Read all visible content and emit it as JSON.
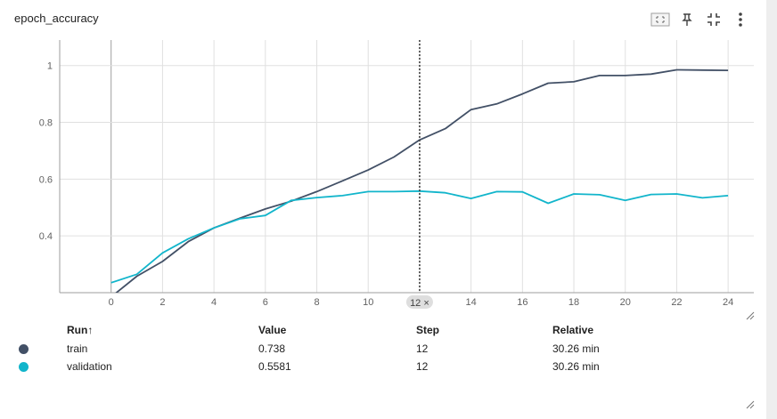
{
  "card": {
    "title": "epoch_accuracy",
    "toolbar": [
      {
        "icon": "fit-to-data-icon"
      },
      {
        "icon": "pin-icon"
      },
      {
        "icon": "collapse-icon"
      },
      {
        "icon": "more-vert-icon"
      }
    ]
  },
  "chart_data": {
    "type": "line",
    "title": "epoch_accuracy",
    "xlabel": "",
    "ylabel": "",
    "xlim": [
      -2,
      25
    ],
    "ylim": [
      0.2,
      1.09
    ],
    "xticks": [
      0,
      2,
      4,
      6,
      8,
      10,
      12,
      14,
      16,
      18,
      20,
      22,
      24
    ],
    "yticks": [
      0.4,
      0.6,
      0.8,
      1
    ],
    "grid": true,
    "hover_step": 12,
    "hover_label": "12 ×",
    "series": [
      {
        "name": "train",
        "color": "#425066",
        "x": [
          0,
          1,
          2,
          3,
          4,
          5,
          6,
          7,
          8,
          9,
          10,
          11,
          12,
          13,
          14,
          15,
          16,
          17,
          18,
          19,
          20,
          21,
          22,
          23,
          24
        ],
        "y": [
          0.185,
          0.258,
          0.31,
          0.38,
          0.428,
          0.462,
          0.495,
          0.522,
          0.556,
          0.594,
          0.632,
          0.678,
          0.738,
          0.778,
          0.845,
          0.865,
          0.9,
          0.938,
          0.943,
          0.965,
          0.965,
          0.97,
          0.985,
          0.984,
          0.983
        ]
      },
      {
        "name": "validation",
        "color": "#12b5cb",
        "x": [
          0,
          1,
          2,
          3,
          4,
          5,
          6,
          7,
          8,
          9,
          10,
          11,
          12,
          13,
          14,
          15,
          16,
          17,
          18,
          19,
          20,
          21,
          22,
          23,
          24
        ],
        "y": [
          0.235,
          0.265,
          0.34,
          0.39,
          0.428,
          0.46,
          0.472,
          0.525,
          0.535,
          0.542,
          0.556,
          0.556,
          0.558,
          0.552,
          0.532,
          0.556,
          0.555,
          0.515,
          0.548,
          0.545,
          0.525,
          0.546,
          0.548,
          0.534,
          0.542
        ]
      }
    ]
  },
  "tooltip": {
    "headers": {
      "run": "Run",
      "sort_arrow": "↑",
      "value": "Value",
      "step": "Step",
      "relative": "Relative"
    },
    "rows": [
      {
        "run": "train",
        "color": "#425066",
        "value": "0.738",
        "step": "12",
        "relative": "30.26 min"
      },
      {
        "run": "validation",
        "color": "#12b5cb",
        "value": "0.5581",
        "step": "12",
        "relative": "30.26 min"
      }
    ]
  }
}
